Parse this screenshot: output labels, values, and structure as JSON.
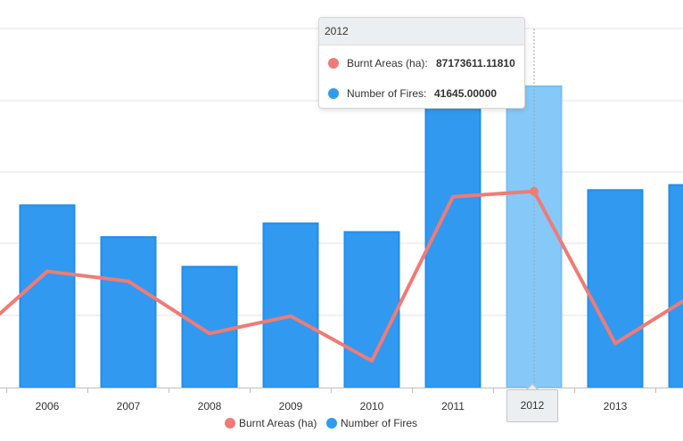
{
  "chart_data": {
    "type": "bar",
    "categories": [
      "2006",
      "2007",
      "2008",
      "2009",
      "2010",
      "2011",
      "2012",
      "2013"
    ],
    "series": [
      {
        "name": "Number of Fires",
        "chart_type": "bar",
        "color": "#2e9bf0",
        "values": [
          25200,
          20800,
          16700,
          22700,
          21500,
          41000,
          41645,
          27300
        ]
      },
      {
        "name": "Burnt Areas (ha)",
        "chart_type": "line",
        "color": "#f07b76",
        "values": [
          55000000,
          51000000,
          30000000,
          37000000,
          19000000,
          85000000,
          87173611.1181,
          26000000
        ]
      }
    ],
    "partial_right": {
      "bar_value": 28000,
      "line_value": 43000000
    },
    "partial_left_line_value": 38000000,
    "title": "",
    "xlabel": "",
    "ylabel": "",
    "legend_position": "bottom-center",
    "grid": true,
    "highlighted_category": "2012"
  },
  "legend": [
    {
      "label": "Burnt Areas (ha)",
      "color": "#f07b76"
    },
    {
      "label": "Number of Fires",
      "color": "#2e9bf0"
    }
  ],
  "tooltip": {
    "title": "2012",
    "rows": [
      {
        "label": "Burnt Areas (ha):",
        "value": "87173611.11810",
        "color": "#f07b76"
      },
      {
        "label": "Number of Fires:",
        "value": "41645.00000",
        "color": "#2e9bf0"
      }
    ]
  },
  "x_tooltip_label": "2012"
}
